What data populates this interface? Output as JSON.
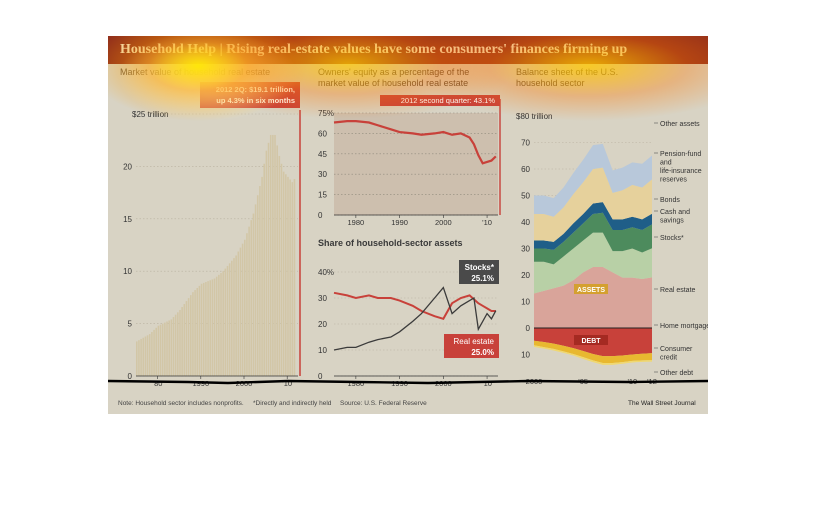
{
  "header": {
    "title": "Household Help | Rising real-estate values have some consumers' finances firming up"
  },
  "panels": {
    "market_value": {
      "subtitle": "Market value of household real estate",
      "callout": "2012 2Q: $19.1 trillion, up 4.3% in six months"
    },
    "equity": {
      "subtitle": "Owners' equity as a percentage of the market value of household real estate",
      "callout": "2012 second quarter: 43.1%"
    },
    "share": {
      "subtitle": "Share of household-sector assets",
      "stocks_label": "Stocks*",
      "stocks_value": "25.1%",
      "re_label": "Real estate",
      "re_value": "25.0%"
    },
    "balance": {
      "subtitle": "Balance sheet of the U.S. household sector",
      "assets_tag": "ASSETS",
      "debt_tag": "DEBT",
      "labels": {
        "other_assets": "Other assets",
        "pension": "Pension-fund and life-insurance reserves",
        "bonds": "Bonds",
        "cash": "Cash and savings",
        "stocks": "Stocks*",
        "real_estate": "Real estate",
        "mortgages": "Home mortgages",
        "consumer": "Consumer credit",
        "other_debt": "Other debt"
      }
    }
  },
  "footer": {
    "note": "Note: Household sector includes nonprofits.",
    "star": "*Directly and indirectly held",
    "source": "Source: U.S. Federal Reserve",
    "credit": "The Wall Street Journal"
  },
  "colors": {
    "header_bg": "#8e2b1c",
    "background": "#d8d3c4",
    "accent_red": "#c8413a",
    "stocks_line": "#3b3b3b",
    "bar_fill": "#d2c6a6"
  },
  "chart_data": [
    {
      "type": "bar",
      "title": "Market value of household real estate",
      "ylabel": "$25 trillion",
      "ylim": [
        0,
        25
      ],
      "yticks": [
        0,
        5,
        10,
        15,
        20,
        25
      ],
      "xticks": [
        "'80",
        "1990",
        "2000",
        "'10"
      ],
      "x": [
        1975,
        1978,
        1980,
        1983,
        1985,
        1988,
        1990,
        1993,
        1995,
        1998,
        2000,
        2002,
        2004,
        2005,
        2006,
        2007,
        2008,
        2009,
        2010,
        2011,
        2012
      ],
      "values": [
        3.3,
        4.0,
        4.8,
        5.4,
        6.3,
        8.0,
        8.8,
        9.3,
        10.0,
        11.5,
        13.0,
        15.5,
        19.0,
        21.5,
        23.0,
        23.0,
        21.0,
        19.5,
        19.0,
        18.5,
        19.1
      ]
    },
    {
      "type": "line",
      "title": "Owners' equity as a percentage of the market value of household real estate",
      "ylim": [
        0,
        75
      ],
      "yticks": [
        0,
        15,
        30,
        45,
        60,
        75
      ],
      "xticks": [
        "1980",
        "1990",
        "2000",
        "'10"
      ],
      "x": [
        1975,
        1978,
        1980,
        1983,
        1985,
        1988,
        1990,
        1993,
        1995,
        1998,
        2000,
        2002,
        2004,
        2006,
        2007,
        2008,
        2009,
        2010,
        2011,
        2012
      ],
      "values": [
        68,
        69,
        69,
        68,
        66,
        63,
        61,
        60,
        59,
        60,
        61,
        59,
        60,
        57,
        52,
        44,
        38,
        39,
        40,
        43.1
      ]
    },
    {
      "type": "line",
      "title": "Share of household-sector assets",
      "ylim": [
        0,
        40
      ],
      "yticks": [
        0,
        10,
        20,
        30,
        40
      ],
      "xticks": [
        "1980",
        "1990",
        "2000",
        "'10"
      ],
      "series": [
        {
          "name": "Real estate",
          "x": [
            1975,
            1978,
            1980,
            1983,
            1985,
            1988,
            1990,
            1993,
            1995,
            1998,
            2000,
            2002,
            2004,
            2006,
            2008,
            2009,
            2010,
            2011,
            2012
          ],
          "values": [
            32,
            31,
            30,
            31,
            30,
            30,
            29,
            27,
            25,
            23,
            22,
            28,
            30,
            31,
            28,
            27,
            26,
            25,
            25.0
          ]
        },
        {
          "name": "Stocks",
          "x": [
            1975,
            1978,
            1980,
            1983,
            1985,
            1988,
            1990,
            1993,
            1995,
            1998,
            2000,
            2002,
            2004,
            2006,
            2007,
            2008,
            2009,
            2010,
            2011,
            2012
          ],
          "values": [
            10,
            11,
            11,
            13,
            14,
            15,
            17,
            21,
            24,
            30,
            34,
            24,
            27,
            29,
            30,
            18,
            21,
            24,
            22,
            25.1
          ]
        }
      ]
    },
    {
      "type": "area",
      "title": "Balance sheet of the U.S. household sector",
      "ylabel": "$80 trillion",
      "ylim": [
        -15,
        80
      ],
      "yticks": [
        0,
        10,
        20,
        30,
        40,
        50,
        60,
        70
      ],
      "xticks": [
        "2000",
        "'05",
        "'10",
        "'12"
      ],
      "x": [
        2000,
        2001,
        2002,
        2003,
        2004,
        2005,
        2006,
        2007,
        2008,
        2009,
        2010,
        2011,
        2012
      ],
      "series": [
        {
          "name": "Real estate",
          "values": [
            13,
            14,
            15,
            16,
            18,
            21,
            23,
            23,
            21,
            19,
            19,
            18.5,
            19.1
          ]
        },
        {
          "name": "Stocks*",
          "values": [
            12,
            11,
            9,
            11,
            12,
            12,
            13,
            13,
            8,
            10,
            11,
            10,
            11
          ]
        },
        {
          "name": "Cash and savings",
          "values": [
            5,
            5,
            5.5,
            5.5,
            6,
            6.5,
            7,
            7.5,
            8,
            8,
            8,
            8.5,
            9
          ]
        },
        {
          "name": "Bonds",
          "values": [
            3,
            3,
            3,
            3,
            3.5,
            3.5,
            4,
            4,
            4,
            4,
            4,
            4,
            4
          ]
        },
        {
          "name": "Pension-fund and life-insurance reserves",
          "values": [
            10,
            10,
            9.5,
            10,
            11,
            12,
            13,
            13,
            10,
            11,
            12,
            12,
            13
          ]
        },
        {
          "name": "Other assets",
          "values": [
            7,
            7,
            7,
            7.5,
            8,
            8.5,
            9,
            9,
            8.5,
            8.5,
            8.5,
            9,
            9
          ]
        },
        {
          "name": "Home mortgages",
          "values": [
            -4.8,
            -5.3,
            -5.9,
            -6.7,
            -7.6,
            -8.7,
            -9.8,
            -10.6,
            -10.6,
            -10.4,
            -10.0,
            -9.7,
            -9.5
          ]
        },
        {
          "name": "Consumer credit",
          "values": [
            -1.7,
            -1.9,
            -2.0,
            -2.1,
            -2.2,
            -2.3,
            -2.4,
            -2.6,
            -2.6,
            -2.5,
            -2.4,
            -2.5,
            -2.6
          ]
        },
        {
          "name": "Other debt",
          "values": [
            -0.6,
            -0.6,
            -0.6,
            -0.6,
            -0.6,
            -0.7,
            -0.7,
            -0.7,
            -0.7,
            -0.6,
            -0.6,
            -0.6,
            -0.6
          ]
        }
      ]
    }
  ]
}
